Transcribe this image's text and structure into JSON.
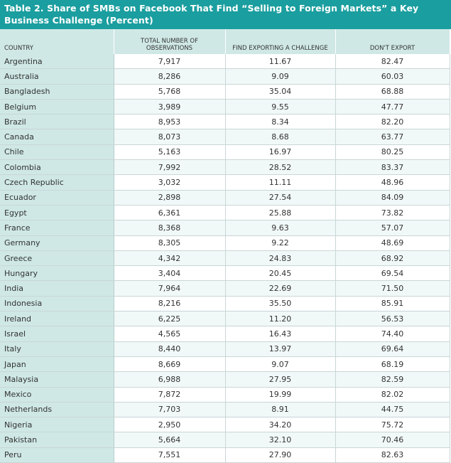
{
  "title": "Table 2. Share of SMBs on Facebook That Find “Selling to Foreign Markets” a Key Business Challenge (Percent)",
  "colors": {
    "title_bg": "#1b9e9f",
    "header_bg": "#cfe8e5",
    "country_col_bg": "#cfe8e5"
  },
  "headers": [
    "COUNTRY",
    "TOTAL NUMBER OF OBSERVATIONS",
    "FIND EXPORTING A CHALLENGE",
    "DON'T EXPORT"
  ],
  "rows": [
    [
      "Argentina",
      "7,917",
      "11.67",
      "82.47"
    ],
    [
      "Australia",
      "8,286",
      "9.09",
      "60.03"
    ],
    [
      "Bangladesh",
      "5,768",
      "35.04",
      "68.88"
    ],
    [
      "Belgium",
      "3,989",
      "9.55",
      "47.77"
    ],
    [
      "Brazil",
      "8,953",
      "8.34",
      "82.20"
    ],
    [
      "Canada",
      "8,073",
      "8.68",
      "63.77"
    ],
    [
      "Chile",
      "5,163",
      "16.97",
      "80.25"
    ],
    [
      "Colombia",
      "7,992",
      "28.52",
      "83.37"
    ],
    [
      "Czech Republic",
      "3,032",
      "11.11",
      "48.96"
    ],
    [
      "Ecuador",
      "2,898",
      "27.54",
      "84.09"
    ],
    [
      "Egypt",
      "6,361",
      "25.88",
      "73.82"
    ],
    [
      "France",
      "8,368",
      "9.63",
      "57.07"
    ],
    [
      "Germany",
      "8,305",
      "9.22",
      "48.69"
    ],
    [
      "Greece",
      "4,342",
      "24.83",
      "68.92"
    ],
    [
      "Hungary",
      "3,404",
      "20.45",
      "69.54"
    ],
    [
      "India",
      "7,964",
      "22.69",
      "71.50"
    ],
    [
      "Indonesia",
      "8,216",
      "35.50",
      "85.91"
    ],
    [
      "Ireland",
      "6,225",
      "11.20",
      "56.53"
    ],
    [
      "Israel",
      "4,565",
      "16.43",
      "74.40"
    ],
    [
      "Italy",
      "8,440",
      "13.97",
      "69.64"
    ],
    [
      "Japan",
      "8,669",
      "9.07",
      "68.19"
    ],
    [
      "Malaysia",
      "6,988",
      "27.95",
      "82.59"
    ],
    [
      "Mexico",
      "7,872",
      "19.99",
      "82.02"
    ],
    [
      "Netherlands",
      "7,703",
      "8.91",
      "44.75"
    ],
    [
      "Nigeria",
      "2,950",
      "34.20",
      "75.72"
    ],
    [
      "Pakistan",
      "5,664",
      "32.10",
      "70.46"
    ],
    [
      "Peru",
      "7,551",
      "27.90",
      "82.63"
    ]
  ]
}
